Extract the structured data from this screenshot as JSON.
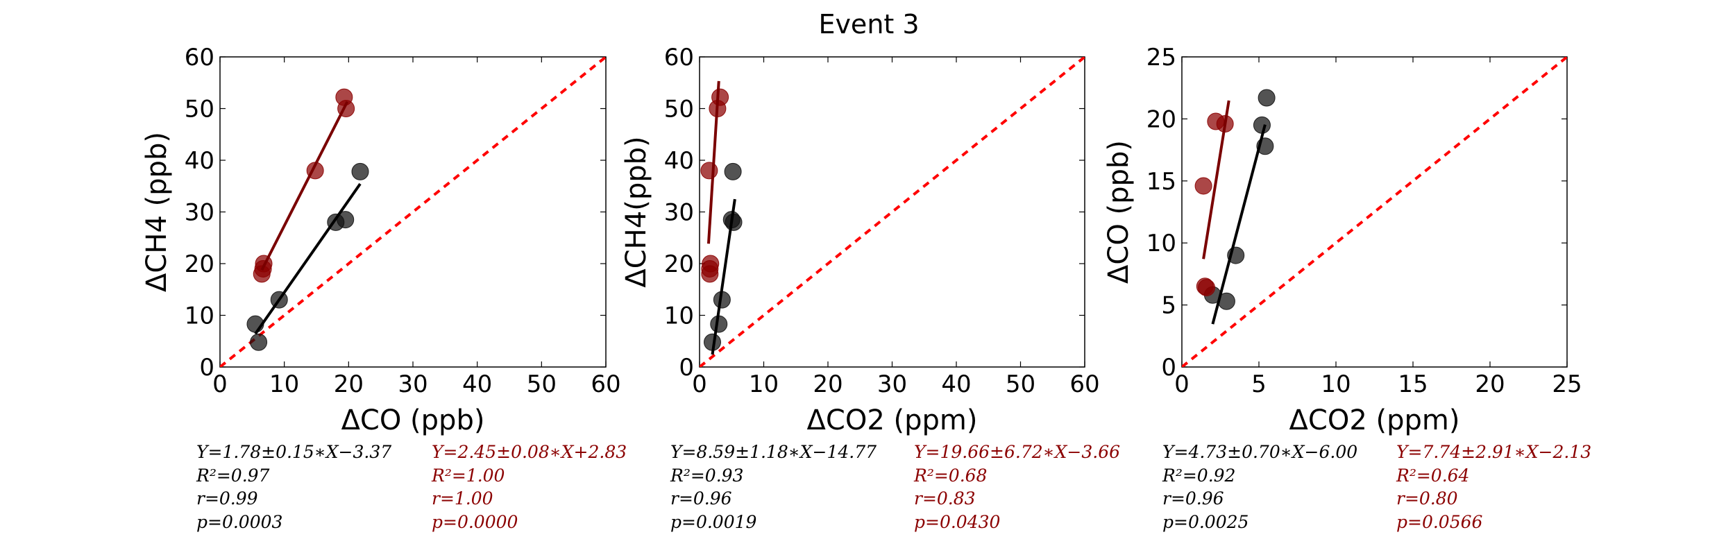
{
  "figure_title": "Event 3",
  "colors": {
    "black_series": "#111111",
    "red_series": "#8b0000",
    "red_fit": "#7a0000",
    "identity_line": "#ff0000"
  },
  "chart_data": [
    {
      "type": "scatter",
      "xlabel": "ΔCO (ppb)",
      "ylabel": "ΔCH4 (ppb)",
      "xlim": [
        0,
        60
      ],
      "ylim": [
        0,
        60
      ],
      "xticks": [
        "0",
        "10",
        "20",
        "30",
        "40",
        "50",
        "60"
      ],
      "yticks": [
        "0",
        "10",
        "20",
        "30",
        "40",
        "50",
        "60"
      ],
      "identity_line": true,
      "series": [
        {
          "color": "#111111",
          "points": [
            [
              5.5,
              8.3
            ],
            [
              6.0,
              4.8
            ],
            [
              9.2,
              13.0
            ],
            [
              18.0,
              28.0
            ],
            [
              19.5,
              28.5
            ],
            [
              21.8,
              37.8
            ]
          ],
          "fit": {
            "slope": 1.78,
            "intercept": -3.37,
            "x_range": [
              5.5,
              21.8
            ]
          }
        },
        {
          "color": "#8b0000",
          "points": [
            [
              6.5,
              18.0
            ],
            [
              6.7,
              19.0
            ],
            [
              6.8,
              20.0
            ],
            [
              14.8,
              38.0
            ],
            [
              19.3,
              52.2
            ],
            [
              19.6,
              50.0
            ]
          ],
          "fit": {
            "slope": 2.45,
            "intercept": 2.83,
            "x_range": [
              6.5,
              19.8
            ]
          }
        }
      ],
      "stats": {
        "left": [
          "Y=1.78±0.15∗X−3.37",
          "R²=0.97",
          "r=0.99",
          "p=0.0003"
        ],
        "right": [
          "Y=2.45±0.08∗X+2.83",
          "R²=1.00",
          "r=1.00",
          "p=0.0000"
        ]
      }
    },
    {
      "type": "scatter",
      "xlabel": "ΔCO2 (ppm)",
      "ylabel": "ΔCH4(ppb)",
      "xlim": [
        0,
        60
      ],
      "ylim": [
        0,
        60
      ],
      "xticks": [
        "0",
        "10",
        "20",
        "30",
        "40",
        "50",
        "60"
      ],
      "yticks": [
        "0",
        "10",
        "20",
        "30",
        "40",
        "50",
        "60"
      ],
      "identity_line": true,
      "series": [
        {
          "color": "#111111",
          "points": [
            [
              2.0,
              4.8
            ],
            [
              3.0,
              8.3
            ],
            [
              3.5,
              13.0
            ],
            [
              5.0,
              28.5
            ],
            [
              5.3,
              28.0
            ],
            [
              5.2,
              37.8
            ]
          ],
          "fit": {
            "slope": 8.59,
            "intercept": -14.77,
            "x_range": [
              2.0,
              5.5
            ]
          }
        },
        {
          "color": "#8b0000",
          "points": [
            [
              1.5,
              38.0
            ],
            [
              1.6,
              18.0
            ],
            [
              1.7,
              20.0
            ],
            [
              1.6,
              19.0
            ],
            [
              2.8,
              50.0
            ],
            [
              3.2,
              52.2
            ]
          ],
          "fit": {
            "slope": 19.66,
            "intercept": -3.66,
            "x_range": [
              1.4,
              3.0
            ]
          }
        }
      ],
      "stats": {
        "left": [
          "Y=8.59±1.18∗X−14.77",
          "R²=0.93",
          "r=0.96",
          "p=0.0019"
        ],
        "right": [
          "Y=19.66±6.72∗X−3.66",
          "R²=0.68",
          "r=0.83",
          "p=0.0430"
        ]
      }
    },
    {
      "type": "scatter",
      "xlabel": "ΔCO2 (ppm)",
      "ylabel": "ΔCO (ppb)",
      "xlim": [
        0,
        25
      ],
      "ylim": [
        0,
        25
      ],
      "xticks": [
        "0",
        "5",
        "10",
        "15",
        "20",
        "25"
      ],
      "yticks": [
        "0",
        "5",
        "10",
        "15",
        "20",
        "25"
      ],
      "identity_line": true,
      "series": [
        {
          "color": "#111111",
          "points": [
            [
              2.0,
              5.8
            ],
            [
              2.9,
              5.3
            ],
            [
              3.5,
              9.0
            ],
            [
              5.2,
              19.5
            ],
            [
              5.4,
              17.8
            ],
            [
              5.5,
              21.7
            ]
          ],
          "fit": {
            "slope": 4.73,
            "intercept": -6.0,
            "x_range": [
              2.0,
              5.4
            ]
          }
        },
        {
          "color": "#8b0000",
          "points": [
            [
              1.4,
              14.6
            ],
            [
              1.5,
              6.5
            ],
            [
              1.6,
              6.4
            ],
            [
              2.2,
              19.8
            ],
            [
              2.8,
              19.6
            ]
          ],
          "fit": {
            "slope": 7.74,
            "intercept": -2.13,
            "x_range": [
              1.4,
              3.05
            ]
          }
        }
      ],
      "stats": {
        "left": [
          "Y=4.73±0.70∗X−6.00",
          "R²=0.92",
          "r=0.96",
          "p=0.0025"
        ],
        "right": [
          "Y=7.74±2.91∗X−2.13",
          "R²=0.64",
          "r=0.80",
          "p=0.0566"
        ]
      }
    }
  ]
}
